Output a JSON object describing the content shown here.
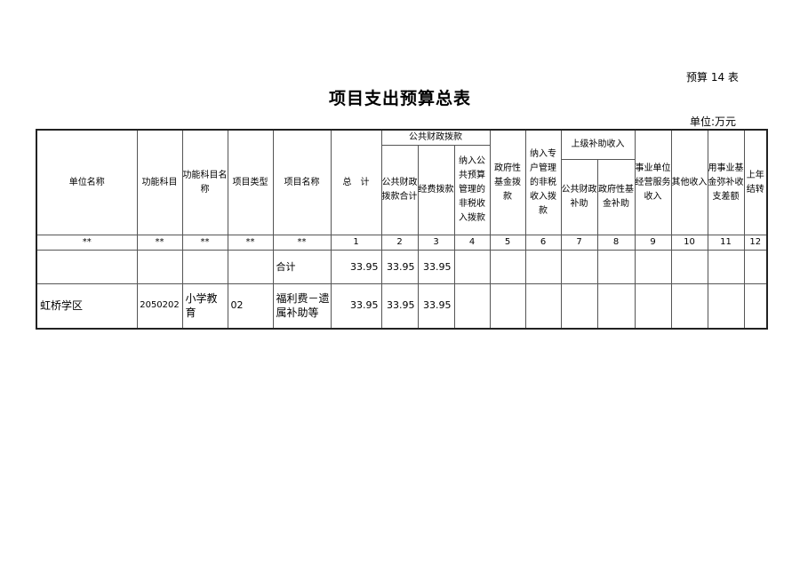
{
  "doc": {
    "code": "预算 14 表",
    "title": "项目支出预算总表",
    "unit": "单位:万元"
  },
  "headers": {
    "unit_name": "单位名称",
    "func_code": "功能科目",
    "func_name": "功能科目名称",
    "proj_type": "项目类型",
    "proj_name": "项目名称",
    "total": "总　计",
    "public_group": "公共财政拨款",
    "public_total": "公共财政拨款合计",
    "funds": "经费拨款",
    "nontax": "纳入公共预算管理的非税收入拨款",
    "gov_fund": "政府性基金拨款",
    "special": "纳入专户管理的非税收入拨款",
    "upper_group": "上级补助收入",
    "upper_public": "公共财政补助",
    "upper_gov": "政府性基金补助",
    "business": "事业单位经营服务收入",
    "other": "其他收入",
    "reserve": "用事业基金弥补收支差额",
    "carry": "上年结转"
  },
  "col_numbers": [
    "**",
    "**",
    "**",
    "**",
    "**",
    "1",
    "2",
    "3",
    "4",
    "5",
    "6",
    "7",
    "8",
    "9",
    "10",
    "11",
    "12"
  ],
  "rows": [
    {
      "unit": "",
      "func_code": "",
      "func_name": "",
      "proj_type": "",
      "proj_name": "合计",
      "total": "33.95",
      "public_total": "33.95",
      "funds": "33.95"
    },
    {
      "unit": "虹桥学区",
      "func_code": "2050202",
      "func_name": "小学教育",
      "proj_type": "02",
      "proj_name": "福利费－遗属补助等",
      "total": "33.95",
      "public_total": "33.95",
      "funds": "33.95"
    }
  ]
}
